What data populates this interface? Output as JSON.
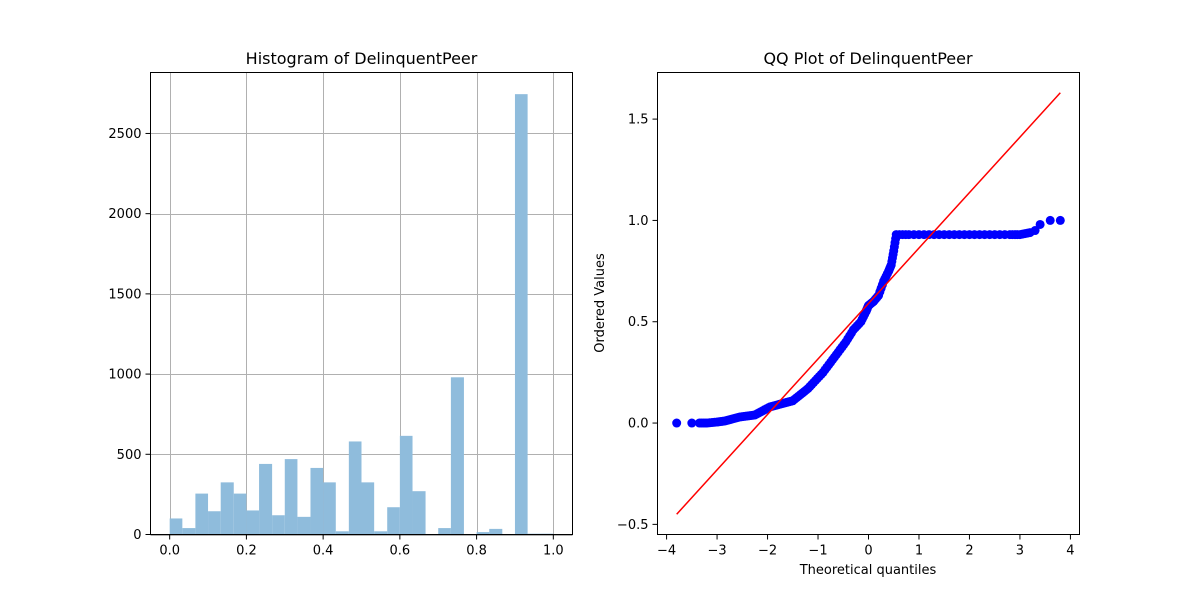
{
  "chart_data": [
    {
      "type": "bar",
      "title": "Histogram of DelinquentPeer",
      "xlabel": "",
      "ylabel": "",
      "xlim": [
        -0.05,
        1.05
      ],
      "ylim": [
        0,
        2880
      ],
      "grid": true,
      "bar_color": "#8fbcdc",
      "bins": [
        {
          "x0": 0.0,
          "x1": 0.033,
          "value": 100
        },
        {
          "x0": 0.033,
          "x1": 0.067,
          "value": 40
        },
        {
          "x0": 0.067,
          "x1": 0.1,
          "value": 255
        },
        {
          "x0": 0.1,
          "x1": 0.133,
          "value": 145
        },
        {
          "x0": 0.133,
          "x1": 0.167,
          "value": 325
        },
        {
          "x0": 0.167,
          "x1": 0.2,
          "value": 255
        },
        {
          "x0": 0.2,
          "x1": 0.233,
          "value": 150
        },
        {
          "x0": 0.233,
          "x1": 0.267,
          "value": 440
        },
        {
          "x0": 0.267,
          "x1": 0.3,
          "value": 120
        },
        {
          "x0": 0.3,
          "x1": 0.333,
          "value": 470
        },
        {
          "x0": 0.333,
          "x1": 0.367,
          "value": 110
        },
        {
          "x0": 0.367,
          "x1": 0.4,
          "value": 415
        },
        {
          "x0": 0.4,
          "x1": 0.433,
          "value": 325
        },
        {
          "x0": 0.433,
          "x1": 0.467,
          "value": 20
        },
        {
          "x0": 0.467,
          "x1": 0.5,
          "value": 580
        },
        {
          "x0": 0.5,
          "x1": 0.533,
          "value": 325
        },
        {
          "x0": 0.533,
          "x1": 0.567,
          "value": 20
        },
        {
          "x0": 0.567,
          "x1": 0.6,
          "value": 170
        },
        {
          "x0": 0.6,
          "x1": 0.633,
          "value": 615
        },
        {
          "x0": 0.633,
          "x1": 0.667,
          "value": 270
        },
        {
          "x0": 0.667,
          "x1": 0.7,
          "value": 0
        },
        {
          "x0": 0.7,
          "x1": 0.733,
          "value": 40
        },
        {
          "x0": 0.733,
          "x1": 0.767,
          "value": 980
        },
        {
          "x0": 0.767,
          "x1": 0.8,
          "value": 0
        },
        {
          "x0": 0.8,
          "x1": 0.833,
          "value": 15
        },
        {
          "x0": 0.833,
          "x1": 0.867,
          "value": 35
        },
        {
          "x0": 0.867,
          "x1": 0.9,
          "value": 0
        },
        {
          "x0": 0.9,
          "x1": 0.933,
          "value": 2745
        },
        {
          "x0": 0.933,
          "x1": 0.967,
          "value": 5
        },
        {
          "x0": 0.967,
          "x1": 1.0,
          "value": 5
        }
      ],
      "xticks": [
        0.0,
        0.2,
        0.4,
        0.6,
        0.8,
        1.0
      ],
      "xtick_labels": [
        "0.0",
        "0.2",
        "0.4",
        "0.6",
        "0.8",
        "1.0"
      ],
      "yticks": [
        0,
        500,
        1000,
        1500,
        2000,
        2500
      ],
      "ytick_labels": [
        "0",
        "500",
        "1000",
        "1500",
        "2000",
        "2500"
      ]
    },
    {
      "type": "scatter",
      "title": "QQ Plot of DelinquentPeer",
      "xlabel": "Theoretical quantiles",
      "ylabel": "Ordered Values",
      "xlim": [
        -4.18,
        4.18
      ],
      "ylim": [
        -0.55,
        1.73
      ],
      "grid": false,
      "point_color": "#0000ff",
      "fit_line": {
        "color": "#ff0000",
        "x": [
          -3.8,
          3.8
        ],
        "y": [
          -0.45,
          1.63
        ]
      },
      "points": [
        [
          -3.8,
          0.0
        ],
        [
          -3.5,
          0.0
        ],
        [
          -3.35,
          0.0
        ],
        [
          -3.2,
          0.0
        ],
        [
          -3.0,
          0.005
        ],
        [
          -2.85,
          0.01
        ],
        [
          -2.7,
          0.02
        ],
        [
          -2.55,
          0.03
        ],
        [
          -2.4,
          0.035
        ],
        [
          -2.25,
          0.04
        ],
        [
          -2.1,
          0.06
        ],
        [
          -1.95,
          0.08
        ],
        [
          -1.8,
          0.09
        ],
        [
          -1.65,
          0.1
        ],
        [
          -1.5,
          0.11
        ],
        [
          -1.35,
          0.14
        ],
        [
          -1.2,
          0.17
        ],
        [
          -1.05,
          0.21
        ],
        [
          -0.9,
          0.25
        ],
        [
          -0.75,
          0.3
        ],
        [
          -0.6,
          0.35
        ],
        [
          -0.45,
          0.4
        ],
        [
          -0.3,
          0.46
        ],
        [
          -0.15,
          0.5
        ],
        [
          -0.05,
          0.55
        ],
        [
          0.0,
          0.58
        ],
        [
          0.1,
          0.6
        ],
        [
          0.2,
          0.63
        ],
        [
          0.3,
          0.7
        ],
        [
          0.4,
          0.75
        ],
        [
          0.45,
          0.78
        ],
        [
          0.5,
          0.85
        ],
        [
          0.55,
          0.93
        ],
        [
          0.8,
          0.93
        ],
        [
          1.2,
          0.93
        ],
        [
          1.6,
          0.93
        ],
        [
          2.0,
          0.93
        ],
        [
          2.4,
          0.93
        ],
        [
          2.8,
          0.93
        ],
        [
          3.0,
          0.93
        ],
        [
          3.2,
          0.94
        ],
        [
          3.3,
          0.95
        ],
        [
          3.4,
          0.98
        ],
        [
          3.6,
          1.0
        ],
        [
          3.8,
          1.0
        ]
      ],
      "xticks": [
        -4,
        -3,
        -2,
        -1,
        0,
        1,
        2,
        3,
        4
      ],
      "xtick_labels": [
        "−4",
        "−3",
        "−2",
        "−1",
        "0",
        "1",
        "2",
        "3",
        "4"
      ],
      "yticks": [
        -0.5,
        0.0,
        0.5,
        1.0,
        1.5
      ],
      "ytick_labels": [
        "−0.5",
        "0.0",
        "0.5",
        "1.0",
        "1.5"
      ]
    }
  ]
}
